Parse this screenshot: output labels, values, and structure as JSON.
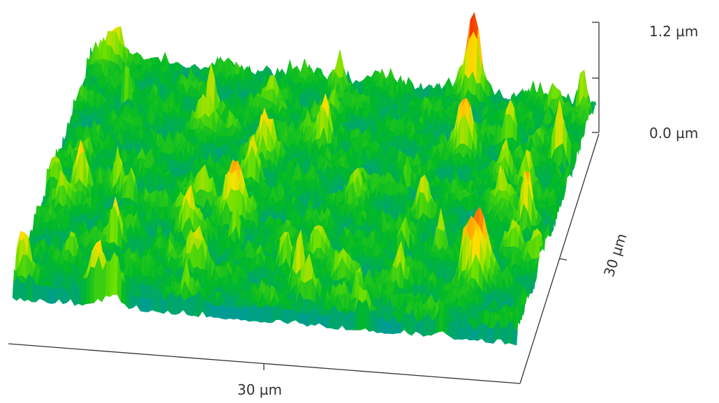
{
  "z_axis": {
    "labels": [
      "1.2 µm",
      "0.0 µm"
    ]
  },
  "x_axis": {
    "label": "30 µm"
  },
  "y_axis": {
    "label": "30 µm"
  }
}
